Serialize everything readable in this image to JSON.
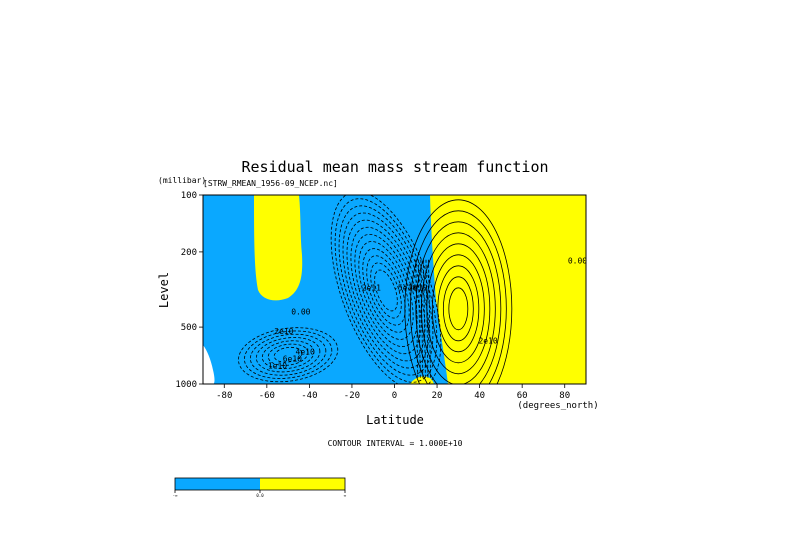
{
  "chart_data": {
    "type": "contour",
    "title": "Residual mean mass stream function",
    "subtitle": "[STRW_RMEAN_1956-09_NCEP.nc]",
    "xlabel": "Latitude",
    "ylabel": "Level",
    "y_units": "(millibar)",
    "x_units": "(degrees_north)",
    "x_ticks": [
      -80,
      -60,
      -40,
      -20,
      0,
      20,
      40,
      60,
      80
    ],
    "y_ticks": [
      100,
      200,
      500,
      1000
    ],
    "xlim": [
      -90,
      90
    ],
    "ylim": [
      1000,
      100
    ],
    "y_scale": "log",
    "contour_interval_text": "CONTOUR INTERVAL = 1.000E+10",
    "contour_labels": [
      {
        "text": "0.00",
        "x": -44,
        "y": 430
      },
      {
        "text": "2e10",
        "x": -52,
        "y": 545
      },
      {
        "text": "4e10",
        "x": -42,
        "y": 700
      },
      {
        "text": "6e10",
        "x": -48,
        "y": 760
      },
      {
        "text": "1e10",
        "x": -55,
        "y": 830
      },
      {
        "text": "-2e11",
        "x": -12,
        "y": 320
      },
      {
        "text": "-5e10",
        "x": 5,
        "y": 320
      },
      {
        "text": "2e10",
        "x": 11,
        "y": 320
      },
      {
        "text": "2e10",
        "x": 44,
        "y": 610
      },
      {
        "text": "0.00",
        "x": 86,
        "y": 230
      }
    ],
    "colorbar": {
      "labels": [
        "-∞",
        "0.0",
        "∞"
      ],
      "colors": [
        "#0aa8ff",
        "#ffff00"
      ]
    },
    "fill_colors": {
      "negative": "#0aa8ff",
      "positive": "#ffff00"
    }
  }
}
